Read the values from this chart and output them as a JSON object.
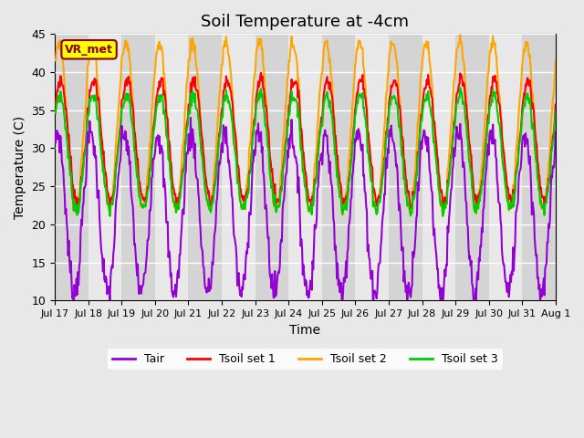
{
  "title": "Soil Temperature at -4cm",
  "xlabel": "Time",
  "ylabel": "Temperature (C)",
  "ylim": [
    10,
    45
  ],
  "yticks": [
    10,
    15,
    20,
    25,
    30,
    35,
    40,
    45
  ],
  "colors": {
    "Tair": "#9400D3",
    "Tsoil_set1": "#FF0000",
    "Tsoil_set2": "#FFA500",
    "Tsoil_set3": "#00CC00"
  },
  "background_color": "#E8E8E8",
  "vr_met_box_color": "#FFFF00",
  "vr_met_text_color": "#8B0000",
  "legend_labels": [
    "Tair",
    "Tsoil set 1",
    "Tsoil set 2",
    "Tsoil set 3"
  ],
  "x_tick_labels": [
    "Jul 17",
    "Jul 18",
    "Jul 19",
    "Jul 20",
    "Jul 21",
    "Jul 22",
    "Jul 23",
    "Jul 24",
    "Jul 25",
    "Jul 26",
    "Jul 27",
    "Jul 28",
    "Jul 29",
    "Jul 30",
    "Jul 31",
    "Aug 1"
  ],
  "n_days": 15,
  "points_per_day": 48
}
